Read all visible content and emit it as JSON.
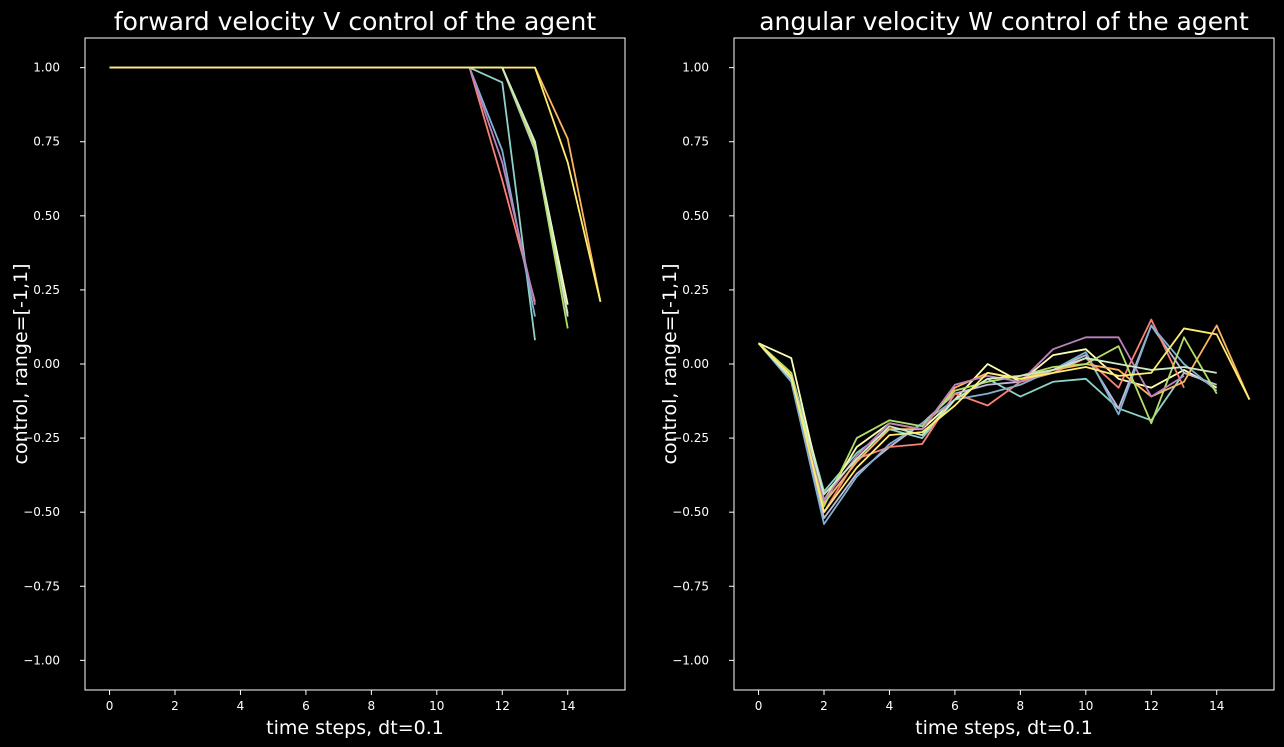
{
  "figure": {
    "background": "#000000",
    "foreground": "#ffffff"
  },
  "chart_data": [
    {
      "type": "line",
      "title": "forward velocity V control of the agent",
      "xlabel": "time steps, dt=0.1",
      "ylabel": "control, range=[-1,1]",
      "xlim": [
        -0.75,
        15.75
      ],
      "ylim": [
        -1.1,
        1.1
      ],
      "xticks": [
        0,
        2,
        4,
        6,
        8,
        10,
        12,
        14
      ],
      "yticks": [
        1.0,
        0.75,
        0.5,
        0.25,
        0.0,
        -0.25,
        -0.5,
        -0.75,
        -1.0
      ],
      "ytick_labels": [
        "1.00",
        "0.75",
        "0.50",
        "0.25",
        "0.00",
        "−0.25",
        "−0.50",
        "−0.75",
        "−1.00"
      ],
      "grid": false,
      "legend": "none",
      "series": [
        {
          "color": "#8dd3c7",
          "x": [
            0,
            1,
            2,
            3,
            4,
            5,
            6,
            7,
            8,
            9,
            10,
            11,
            12,
            13
          ],
          "values": [
            1,
            1,
            1,
            1,
            1,
            1,
            1,
            1,
            1,
            1,
            1,
            1,
            0.95,
            0.08
          ]
        },
        {
          "color": "#feffb3",
          "x": [
            0,
            1,
            2,
            3,
            4,
            5,
            6,
            7,
            8,
            9,
            10,
            11,
            12,
            13,
            14
          ],
          "values": [
            1,
            1,
            1,
            1,
            1,
            1,
            1,
            1,
            1,
            1,
            1,
            1,
            1,
            0.74,
            0.2
          ]
        },
        {
          "color": "#bfbbd9",
          "x": [
            0,
            1,
            2,
            3,
            4,
            5,
            6,
            7,
            8,
            9,
            10,
            11,
            12,
            13,
            14
          ],
          "values": [
            1,
            1,
            1,
            1,
            1,
            1,
            1,
            1,
            1,
            1,
            1,
            1,
            1,
            0.72,
            0.17
          ]
        },
        {
          "color": "#fa8174",
          "x": [
            0,
            1,
            2,
            3,
            4,
            5,
            6,
            7,
            8,
            9,
            10,
            11,
            12,
            13
          ],
          "values": [
            1,
            1,
            1,
            1,
            1,
            1,
            1,
            1,
            1,
            1,
            1,
            1,
            0.62,
            0.21
          ]
        },
        {
          "color": "#81b1d2",
          "x": [
            0,
            1,
            2,
            3,
            4,
            5,
            6,
            7,
            8,
            9,
            10,
            11,
            12,
            13
          ],
          "values": [
            1,
            1,
            1,
            1,
            1,
            1,
            1,
            1,
            1,
            1,
            1,
            1,
            0.72,
            0.16
          ]
        },
        {
          "color": "#fdb462",
          "x": [
            0,
            1,
            2,
            3,
            4,
            5,
            6,
            7,
            8,
            9,
            10,
            11,
            12,
            13,
            14,
            15
          ],
          "values": [
            1,
            1,
            1,
            1,
            1,
            1,
            1,
            1,
            1,
            1,
            1,
            1,
            1,
            1,
            0.76,
            0.21
          ]
        },
        {
          "color": "#b3de69",
          "x": [
            0,
            1,
            2,
            3,
            4,
            5,
            6,
            7,
            8,
            9,
            10,
            11,
            12,
            13,
            14
          ],
          "values": [
            1,
            1,
            1,
            1,
            1,
            1,
            1,
            1,
            1,
            1,
            1,
            1,
            1,
            0.73,
            0.12
          ]
        },
        {
          "color": "#bc82bd",
          "x": [
            0,
            1,
            2,
            3,
            4,
            5,
            6,
            7,
            8,
            9,
            10,
            11,
            12,
            13
          ],
          "values": [
            1,
            1,
            1,
            1,
            1,
            1,
            1,
            1,
            1,
            1,
            1,
            1,
            0.68,
            0.2
          ]
        },
        {
          "color": "#ccebc4",
          "x": [
            0,
            1,
            2,
            3,
            4,
            5,
            6,
            7,
            8,
            9,
            10,
            11,
            12,
            13,
            14
          ],
          "values": [
            1,
            1,
            1,
            1,
            1,
            1,
            1,
            1,
            1,
            1,
            1,
            1,
            1,
            0.75,
            0.16
          ]
        },
        {
          "color": "#ffed6f",
          "x": [
            0,
            1,
            2,
            3,
            4,
            5,
            6,
            7,
            8,
            9,
            10,
            11,
            12,
            13,
            14,
            15
          ],
          "values": [
            1,
            1,
            1,
            1,
            1,
            1,
            1,
            1,
            1,
            1,
            1,
            1,
            1,
            1,
            0.68,
            0.21
          ]
        }
      ]
    },
    {
      "type": "line",
      "title": "angular velocity W control of the agent",
      "xlabel": "time steps, dt=0.1",
      "ylabel": "control, range=[-1,1]",
      "xlim": [
        -0.75,
        15.75
      ],
      "ylim": [
        -1.1,
        1.1
      ],
      "xticks": [
        0,
        2,
        4,
        6,
        8,
        10,
        12,
        14
      ],
      "yticks": [
        1.0,
        0.75,
        0.5,
        0.25,
        0.0,
        -0.25,
        -0.5,
        -0.75,
        -1.0
      ],
      "ytick_labels": [
        "1.00",
        "0.75",
        "0.50",
        "0.25",
        "0.00",
        "−0.25",
        "−0.50",
        "−0.75",
        "−1.00"
      ],
      "grid": false,
      "legend": "none",
      "series": [
        {
          "color": "#8dd3c7",
          "x": [
            0,
            1,
            2,
            3,
            4,
            5,
            6,
            7,
            8,
            9,
            10,
            11,
            12,
            13
          ],
          "values": [
            0.07,
            -0.03,
            -0.43,
            -0.3,
            -0.22,
            -0.25,
            -0.12,
            -0.05,
            -0.11,
            -0.06,
            -0.05,
            -0.15,
            -0.19,
            -0.03
          ]
        },
        {
          "color": "#feffb3",
          "x": [
            0,
            1,
            2,
            3,
            4,
            5,
            6,
            7,
            8,
            9,
            10,
            11,
            12,
            13,
            14
          ],
          "values": [
            0.07,
            0.02,
            -0.46,
            -0.28,
            -0.2,
            -0.22,
            -0.12,
            0.0,
            -0.06,
            0.03,
            0.05,
            -0.05,
            -0.08,
            -0.02,
            -0.08
          ]
        },
        {
          "color": "#bfbbd9",
          "x": [
            0,
            1,
            2,
            3,
            4,
            5,
            6,
            7,
            8,
            9,
            10,
            11,
            12,
            13,
            14
          ],
          "values": [
            0.07,
            -0.04,
            -0.52,
            -0.37,
            -0.28,
            -0.2,
            -0.1,
            -0.07,
            -0.06,
            -0.02,
            0.03,
            -0.15,
            0.13,
            -0.03,
            -0.07
          ]
        },
        {
          "color": "#fa8174",
          "x": [
            0,
            1,
            2,
            3,
            4,
            5,
            6,
            7,
            8,
            9,
            10,
            11,
            12,
            13
          ],
          "values": [
            0.07,
            -0.05,
            -0.5,
            -0.32,
            -0.28,
            -0.27,
            -0.1,
            -0.14,
            -0.06,
            -0.03,
            0.02,
            -0.08,
            0.15,
            -0.08
          ]
        },
        {
          "color": "#81b1d2",
          "x": [
            0,
            1,
            2,
            3,
            4,
            5,
            6,
            7,
            8,
            9,
            10,
            11,
            12,
            13,
            14
          ],
          "values": [
            0.07,
            -0.06,
            -0.54,
            -0.38,
            -0.27,
            -0.2,
            -0.12,
            -0.1,
            -0.07,
            -0.02,
            0.04,
            -0.17,
            0.13,
            0.0,
            -0.09
          ]
        },
        {
          "color": "#fdb462",
          "x": [
            0,
            1,
            2,
            3,
            4,
            5,
            6,
            7,
            8,
            9,
            10,
            11,
            12,
            13,
            14,
            15
          ],
          "values": [
            0.07,
            -0.04,
            -0.47,
            -0.33,
            -0.22,
            -0.22,
            -0.08,
            -0.03,
            -0.05,
            -0.02,
            0.0,
            -0.02,
            -0.11,
            -0.06,
            0.13,
            -0.12
          ]
        },
        {
          "color": "#b3de69",
          "x": [
            0,
            1,
            2,
            3,
            4,
            5,
            6,
            7,
            8,
            9,
            10,
            11,
            12,
            13,
            14
          ],
          "values": [
            0.07,
            -0.03,
            -0.48,
            -0.25,
            -0.19,
            -0.21,
            -0.09,
            -0.06,
            -0.04,
            -0.01,
            0.0,
            0.06,
            -0.2,
            0.09,
            -0.1
          ]
        },
        {
          "color": "#bc82bd",
          "x": [
            0,
            1,
            2,
            3,
            4,
            5,
            6,
            7,
            8,
            9,
            10,
            11,
            12,
            13
          ],
          "values": [
            0.07,
            -0.04,
            -0.46,
            -0.31,
            -0.2,
            -0.22,
            -0.07,
            -0.04,
            -0.06,
            0.05,
            0.09,
            0.09,
            -0.11,
            -0.04
          ]
        },
        {
          "color": "#ccebc4",
          "x": [
            0,
            1,
            2,
            3,
            4,
            5,
            6,
            7,
            8,
            9,
            10,
            11,
            12,
            13,
            14
          ],
          "values": [
            0.07,
            -0.05,
            -0.44,
            -0.32,
            -0.21,
            -0.24,
            -0.12,
            -0.05,
            -0.04,
            -0.02,
            0.02,
            0.0,
            -0.02,
            -0.01,
            -0.03
          ]
        },
        {
          "color": "#ffed6f",
          "x": [
            0,
            1,
            2,
            3,
            4,
            5,
            6,
            7,
            8,
            9,
            10,
            11,
            12,
            13,
            14,
            15
          ],
          "values": [
            0.07,
            -0.04,
            -0.5,
            -0.35,
            -0.24,
            -0.23,
            -0.14,
            -0.03,
            -0.05,
            -0.03,
            -0.01,
            -0.04,
            -0.03,
            0.12,
            0.1,
            -0.12
          ]
        }
      ]
    }
  ]
}
